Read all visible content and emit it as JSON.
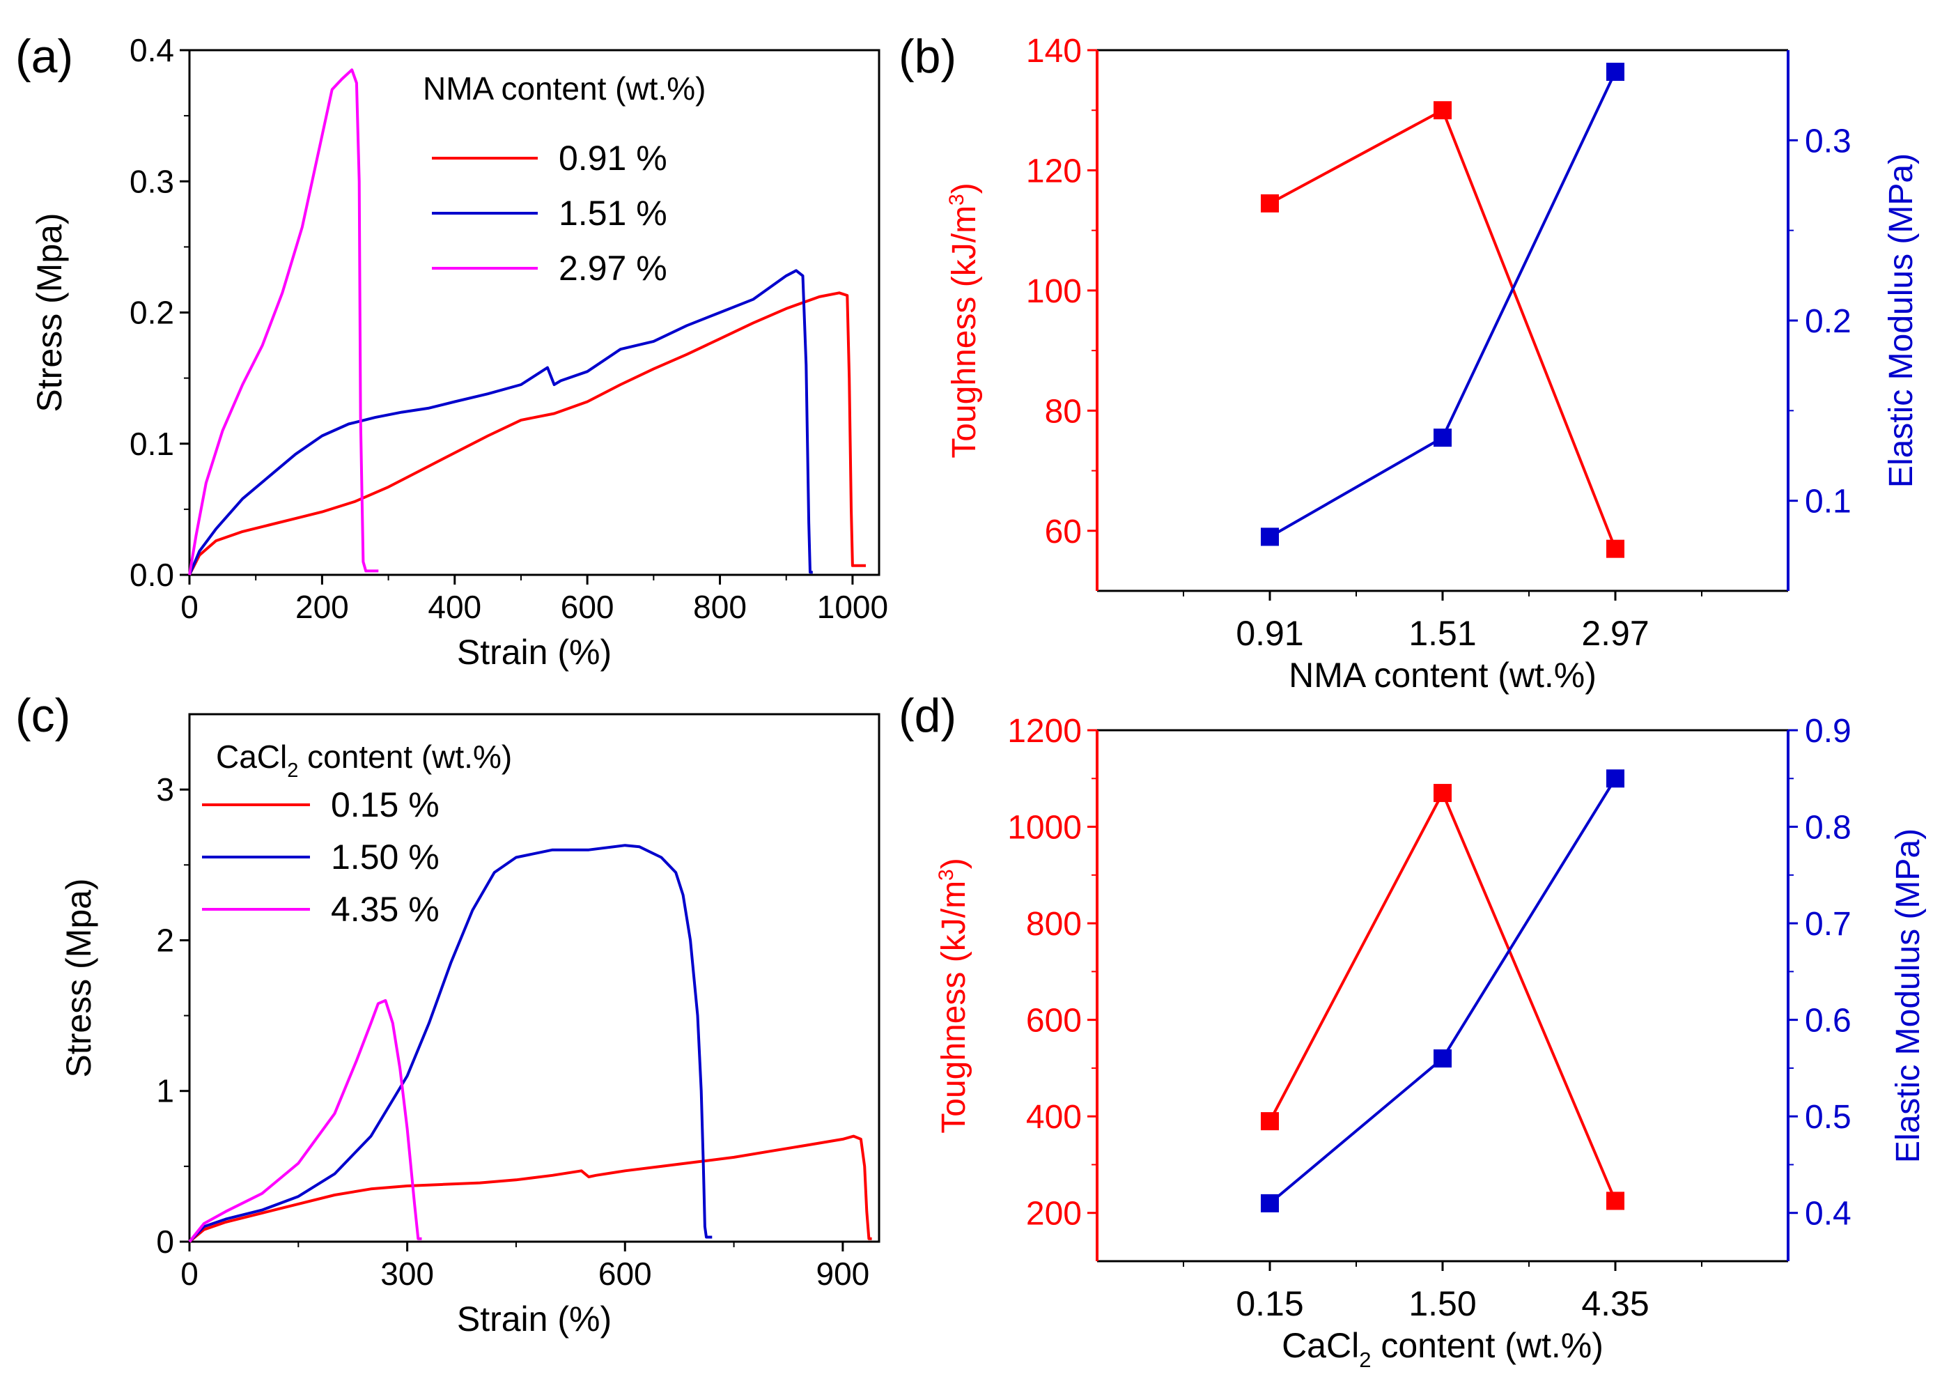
{
  "colors": {
    "red": "#ff0000",
    "blue": "#0000cc",
    "magenta": "#ff00ff",
    "axis": "#000000"
  },
  "chart_data": [
    {
      "id": "a",
      "panel_label": "(a)",
      "type": "line",
      "xlabel": "Strain (%)",
      "ylabel": "Stress (Mpa)",
      "xlim": [
        0,
        1040
      ],
      "ylim": [
        0,
        0.4
      ],
      "xticks": [
        0,
        200,
        400,
        600,
        800,
        1000
      ],
      "xtick_labels": [
        "0",
        "200",
        "400",
        "600",
        "800",
        "1000"
      ],
      "yticks": [
        0,
        0.1,
        0.2,
        0.3,
        0.4
      ],
      "ytick_labels": [
        "0.0",
        "0.1",
        "0.2",
        "0.3",
        "0.4"
      ],
      "legend_title": "NMA content (wt.%)",
      "legend_title_parts": [
        "NMA content (wt.%)"
      ],
      "series": [
        {
          "name": "0.91 %",
          "color": "red",
          "x": [
            0,
            15,
            40,
            80,
            120,
            160,
            200,
            250,
            300,
            350,
            400,
            450,
            500,
            550,
            600,
            650,
            700,
            750,
            800,
            850,
            900,
            950,
            980,
            992,
            995,
            998,
            1000,
            1020
          ],
          "y": [
            0,
            0.015,
            0.026,
            0.033,
            0.038,
            0.043,
            0.048,
            0.056,
            0.067,
            0.08,
            0.093,
            0.106,
            0.118,
            0.123,
            0.132,
            0.145,
            0.157,
            0.168,
            0.18,
            0.192,
            0.203,
            0.212,
            0.215,
            0.213,
            0.15,
            0.05,
            0.007,
            0.007
          ]
        },
        {
          "name": "1.51 %",
          "color": "blue",
          "x": [
            0,
            15,
            40,
            80,
            120,
            160,
            200,
            240,
            280,
            320,
            360,
            400,
            450,
            500,
            540,
            550,
            560,
            600,
            650,
            700,
            750,
            800,
            850,
            900,
            915,
            925,
            930,
            934,
            936,
            940
          ],
          "y": [
            0,
            0.018,
            0.035,
            0.058,
            0.075,
            0.092,
            0.106,
            0.115,
            0.12,
            0.124,
            0.127,
            0.132,
            0.138,
            0.145,
            0.158,
            0.145,
            0.148,
            0.155,
            0.172,
            0.178,
            0.19,
            0.2,
            0.21,
            0.228,
            0.232,
            0.228,
            0.16,
            0.04,
            0.002,
            0.002
          ]
        },
        {
          "name": "2.97 %",
          "color": "magenta",
          "x": [
            0,
            10,
            25,
            50,
            80,
            110,
            140,
            170,
            200,
            215,
            230,
            245,
            252,
            256,
            258,
            262,
            266,
            275,
            285
          ],
          "y": [
            0,
            0.03,
            0.07,
            0.11,
            0.145,
            0.175,
            0.215,
            0.265,
            0.335,
            0.37,
            0.378,
            0.385,
            0.375,
            0.3,
            0.12,
            0.01,
            0.003,
            0.003,
            0.003
          ]
        }
      ]
    },
    {
      "id": "b",
      "panel_label": "(b)",
      "type": "line",
      "xlabel": "NMA content (wt.%)",
      "xlabel_parts": [
        "NMA content (wt.%)"
      ],
      "categories": [
        "0.91",
        "1.51",
        "2.97"
      ],
      "y1label": "Toughness (kJ/m",
      "y1label_sup": "3",
      "y1label_end": ")",
      "y2label": "Elastic Modulus (MPa)",
      "y1lim": [
        50,
        140
      ],
      "y2lim": [
        0.05,
        0.35
      ],
      "y1ticks": [
        60,
        80,
        100,
        120,
        140
      ],
      "y1tick_labels": [
        "60",
        "80",
        "100",
        "120",
        "140"
      ],
      "y2ticks": [
        0.1,
        0.2,
        0.3
      ],
      "y2tick_labels": [
        "0.1",
        "0.2",
        "0.3"
      ],
      "series": [
        {
          "name": "Toughness",
          "axis": "left",
          "color": "red",
          "values": [
            114.5,
            130,
            57
          ]
        },
        {
          "name": "Elastic Modulus",
          "axis": "right",
          "color": "blue",
          "values": [
            0.08,
            0.135,
            0.338
          ]
        }
      ]
    },
    {
      "id": "c",
      "panel_label": "(c)",
      "type": "line",
      "xlabel": "Strain (%)",
      "ylabel": "Stress (Mpa)",
      "xlim": [
        0,
        950
      ],
      "ylim": [
        0,
        3.5
      ],
      "xticks": [
        0,
        300,
        600,
        900
      ],
      "xtick_labels": [
        "0",
        "300",
        "600",
        "900"
      ],
      "yticks": [
        0,
        1,
        2,
        3
      ],
      "ytick_labels": [
        "0",
        "1",
        "2",
        "3"
      ],
      "legend_title": "CaCl2 content (wt.%)",
      "legend_title_parts": [
        "CaCl",
        "2",
        " content (wt.%)"
      ],
      "series": [
        {
          "name": "0.15 %",
          "color": "red",
          "x": [
            0,
            20,
            50,
            100,
            150,
            200,
            250,
            300,
            350,
            400,
            450,
            500,
            540,
            550,
            560,
            600,
            650,
            700,
            750,
            800,
            850,
            900,
            915,
            925,
            930,
            933,
            936,
            940
          ],
          "y": [
            0,
            0.08,
            0.13,
            0.19,
            0.25,
            0.31,
            0.35,
            0.37,
            0.38,
            0.39,
            0.41,
            0.44,
            0.47,
            0.43,
            0.44,
            0.47,
            0.5,
            0.53,
            0.56,
            0.6,
            0.64,
            0.68,
            0.7,
            0.68,
            0.5,
            0.2,
            0.02,
            0.02
          ]
        },
        {
          "name": "1.50 %",
          "color": "blue",
          "x": [
            0,
            20,
            50,
            100,
            150,
            200,
            250,
            300,
            330,
            360,
            390,
            420,
            450,
            500,
            550,
            600,
            620,
            650,
            670,
            680,
            690,
            700,
            705,
            708,
            710,
            712,
            715,
            720
          ],
          "y": [
            0,
            0.1,
            0.15,
            0.21,
            0.3,
            0.45,
            0.7,
            1.1,
            1.45,
            1.85,
            2.2,
            2.45,
            2.55,
            2.6,
            2.6,
            2.63,
            2.62,
            2.55,
            2.45,
            2.3,
            2.0,
            1.5,
            1.0,
            0.5,
            0.1,
            0.03,
            0.03,
            0.03
          ]
        },
        {
          "name": "4.35 %",
          "color": "magenta",
          "x": [
            0,
            20,
            50,
            100,
            150,
            200,
            230,
            250,
            260,
            270,
            280,
            290,
            300,
            310,
            315,
            320
          ],
          "y": [
            0,
            0.12,
            0.2,
            0.32,
            0.52,
            0.85,
            1.2,
            1.45,
            1.58,
            1.6,
            1.45,
            1.15,
            0.75,
            0.25,
            0.02,
            0.02
          ]
        }
      ]
    },
    {
      "id": "d",
      "panel_label": "(d)",
      "type": "line",
      "xlabel": "CaCl2 content (wt.%)",
      "xlabel_parts": [
        "CaCl",
        "2",
        " content (wt.%)"
      ],
      "categories": [
        "0.15",
        "1.50",
        "4.35"
      ],
      "y1label": "Toughness (kJ/m",
      "y1label_sup": "3",
      "y1label_end": ")",
      "y2label": "Elastic Modulus (MPa)",
      "y1lim": [
        100,
        1200
      ],
      "y2lim": [
        0.35,
        0.9
      ],
      "y1ticks": [
        200,
        400,
        600,
        800,
        1000,
        1200
      ],
      "y1tick_labels": [
        "200",
        "400",
        "600",
        "800",
        "1000",
        "1200"
      ],
      "y2ticks": [
        0.4,
        0.5,
        0.6,
        0.7,
        0.8,
        0.9
      ],
      "y2tick_labels": [
        "0.4",
        "0.5",
        "0.6",
        "0.7",
        "0.8",
        "0.9"
      ],
      "series": [
        {
          "name": "Toughness",
          "axis": "left",
          "color": "red",
          "values": [
            390,
            1070,
            225
          ]
        },
        {
          "name": "Elastic Modulus",
          "axis": "right",
          "color": "blue",
          "values": [
            0.41,
            0.56,
            0.85
          ]
        }
      ]
    }
  ]
}
